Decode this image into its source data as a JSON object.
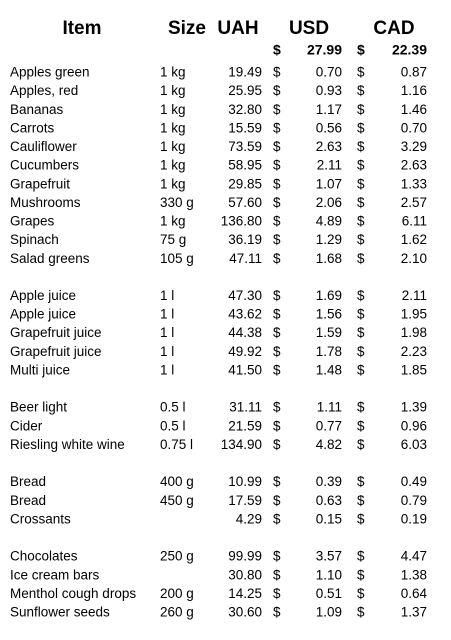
{
  "header": {
    "columns": [
      "Item",
      "Size",
      "UAH",
      "USD",
      "CAD"
    ],
    "currency": "$",
    "rates": {
      "usd": "27.99",
      "cad": "22.39"
    }
  },
  "groups": [
    [
      [
        "Apples green",
        "1 kg",
        "19.49",
        "0.70",
        "0.87"
      ],
      [
        "Apples, red",
        "1 kg",
        "25.95",
        "0.93",
        "1.16"
      ],
      [
        "Bananas",
        "1 kg",
        "32.80",
        "1.17",
        "1.46"
      ],
      [
        "Carrots",
        "1 kg",
        "15.59",
        "0.56",
        "0.70"
      ],
      [
        "Cauliflower",
        "1 kg",
        "73.59",
        "2.63",
        "3.29"
      ],
      [
        "Cucumbers",
        "1 kg",
        "58.95",
        "2.11",
        "2.63"
      ],
      [
        "Grapefruit",
        "1 kg",
        "29.85",
        "1.07",
        "1.33"
      ],
      [
        "Mushrooms",
        "330 g",
        "57.60",
        "2.06",
        "2.57"
      ],
      [
        "Grapes",
        "1 kg",
        "136.80",
        "4.89",
        "6.11"
      ],
      [
        "Spinach",
        "75 g",
        "36.19",
        "1.29",
        "1.62"
      ],
      [
        "Salad greens",
        "105 g",
        "47.11",
        "1.68",
        "2.10"
      ]
    ],
    [
      [
        "Apple juice",
        "1 l",
        "47.30",
        "1.69",
        "2.11"
      ],
      [
        "Apple juice",
        "1 l",
        "43.62",
        "1.56",
        "1.95"
      ],
      [
        "Grapefruit juice",
        "1 l",
        "44.38",
        "1.59",
        "1.98"
      ],
      [
        "Grapefruit juice",
        "1 l",
        "49.92",
        "1.78",
        "2.23"
      ],
      [
        "Multi juice",
        "1 l",
        "41.50",
        "1.48",
        "1.85"
      ]
    ],
    [
      [
        "Beer light",
        "0.5 l",
        "31.11",
        "1.11",
        "1.39"
      ],
      [
        "Cider",
        "0.5 l",
        "21.59",
        "0.77",
        "0.96"
      ],
      [
        "Riesling white wine",
        "0.75 l",
        "134.90",
        "4.82",
        "6.03"
      ]
    ],
    [
      [
        "Bread",
        "400 g",
        "10.99",
        "0.39",
        "0.49"
      ],
      [
        "Bread",
        "450 g",
        "17.59",
        "0.63",
        "0.79"
      ],
      [
        "Crossants",
        null,
        "4.29",
        "0.15",
        "0.19"
      ]
    ],
    [
      [
        "Chocolates",
        "250 g",
        "99.99",
        "3.57",
        "4.47"
      ],
      [
        "Ice cream bars",
        null,
        "30.80",
        "1.10",
        "1.38"
      ],
      [
        "Menthol cough drops",
        "200 g",
        "14.25",
        "0.51",
        "0.64"
      ],
      [
        "Sunflower seeds",
        "260 g",
        "30.60",
        "1.09",
        "1.37"
      ]
    ]
  ]
}
